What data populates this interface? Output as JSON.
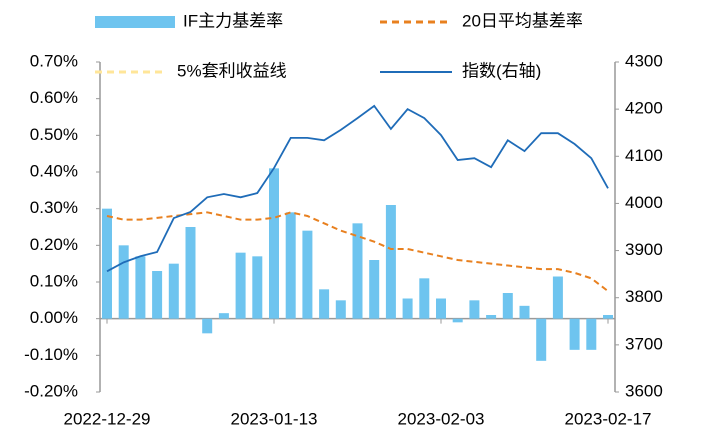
{
  "chart_data": {
    "type": "bar_line",
    "categories": [
      "2022-12-29",
      null,
      null,
      null,
      null,
      null,
      null,
      null,
      null,
      null,
      "2023-01-13",
      null,
      null,
      null,
      null,
      null,
      null,
      null,
      null,
      null,
      "2023-02-03",
      null,
      null,
      null,
      null,
      null,
      null,
      null,
      null,
      null,
      "2023-02-17"
    ],
    "series": [
      {
        "name": "IF主力基差率",
        "type": "bar",
        "color": "#6ec4ef",
        "values": [
          0.3,
          0.2,
          0.17,
          0.13,
          0.15,
          0.25,
          -0.04,
          0.015,
          0.18,
          0.17,
          0.41,
          0.29,
          0.24,
          0.08,
          0.05,
          0.26,
          0.16,
          0.31,
          0.055,
          0.11,
          0.055,
          -0.01,
          0.05,
          0.01,
          0.07,
          0.035,
          -0.115,
          0.115,
          -0.085,
          -0.085,
          0.01
        ]
      },
      {
        "name": "20日平均基差率",
        "type": "line",
        "dash": true,
        "color": "#e8801f",
        "values": [
          0.28,
          0.27,
          0.27,
          0.275,
          0.28,
          0.285,
          0.29,
          0.28,
          0.27,
          0.27,
          0.275,
          0.29,
          0.28,
          0.26,
          0.24,
          0.225,
          0.21,
          0.19,
          0.19,
          0.18,
          0.17,
          0.16,
          0.155,
          0.15,
          0.145,
          0.14,
          0.135,
          0.135,
          0.125,
          0.11,
          0.075
        ]
      },
      {
        "name": "5%套利收益线",
        "type": "line",
        "dash": true,
        "color": "#ffe699",
        "values": [
          null,
          null,
          null,
          null,
          null,
          null,
          null,
          null,
          null,
          null,
          null,
          null,
          null,
          null,
          null,
          null,
          null,
          null,
          null,
          null,
          null,
          null,
          null,
          null,
          null,
          null,
          null,
          null,
          null,
          null,
          null
        ]
      },
      {
        "name": "指数(右轴)",
        "type": "line",
        "axis": "y2",
        "color": "#1f6cb8",
        "values": [
          3856,
          3875,
          3888,
          3897,
          3969,
          3982,
          4013,
          4020,
          4013,
          4022,
          4075,
          4139,
          4139,
          4134,
          4156,
          4181,
          4207,
          4158,
          4200,
          4181,
          4145,
          4092,
          4096,
          4077,
          4134,
          4111,
          4149,
          4149,
          4126,
          4096,
          4032
        ]
      }
    ],
    "ylim": [
      -0.2,
      0.7
    ],
    "yticks": [
      {
        "value": -0.2,
        "label": "-0.20%"
      },
      {
        "value": -0.1,
        "label": "-0.10%"
      },
      {
        "value": 0,
        "label": "0.00%"
      },
      {
        "value": 0.1,
        "label": "0.10%"
      },
      {
        "value": 0.2,
        "label": "0.20%"
      },
      {
        "value": 0.3,
        "label": "0.30%"
      },
      {
        "value": 0.4,
        "label": "0.40%"
      },
      {
        "value": 0.5,
        "label": "0.50%"
      },
      {
        "value": 0.6,
        "label": "0.60%"
      },
      {
        "value": 0.7,
        "label": "0.70%"
      }
    ],
    "y2lim": [
      3600,
      4300
    ],
    "y2ticks": [
      3600,
      3700,
      3800,
      3900,
      4000,
      4100,
      4200,
      4300
    ]
  }
}
